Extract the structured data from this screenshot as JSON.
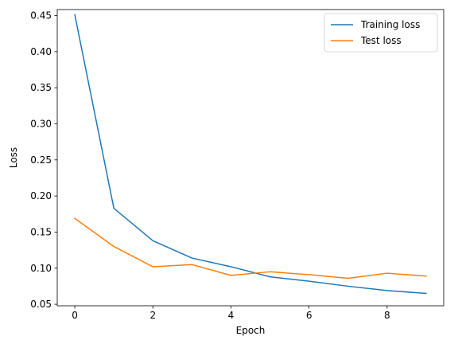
{
  "chart_data": {
    "type": "line",
    "xlabel": "Epoch",
    "ylabel": "Loss",
    "xlim": [
      -0.45,
      9.45
    ],
    "ylim": [
      0.0479,
      0.4583
    ],
    "xticks": [
      0,
      2,
      4,
      6,
      8
    ],
    "xtick_labels": [
      "0",
      "2",
      "4",
      "6",
      "8"
    ],
    "yticks": [
      0.05,
      0.1,
      0.15,
      0.2,
      0.25,
      0.3,
      0.35,
      0.4,
      0.45
    ],
    "ytick_labels": [
      "0.05",
      "0.10",
      "0.15",
      "0.20",
      "0.25",
      "0.30",
      "0.35",
      "0.40",
      "0.45"
    ],
    "grid": false,
    "legend_position": "top-right",
    "x": [
      0,
      1,
      2,
      3,
      4,
      5,
      6,
      7,
      8,
      9
    ],
    "series": [
      {
        "name": "Training loss",
        "color": "#1f77b4",
        "values": [
          0.451,
          0.183,
          0.138,
          0.114,
          0.102,
          0.088,
          0.082,
          0.075,
          0.069,
          0.065
        ]
      },
      {
        "name": "Test loss",
        "color": "#ff7f0e",
        "values": [
          0.169,
          0.13,
          0.102,
          0.105,
          0.09,
          0.095,
          0.091,
          0.086,
          0.093,
          0.089
        ]
      }
    ]
  }
}
